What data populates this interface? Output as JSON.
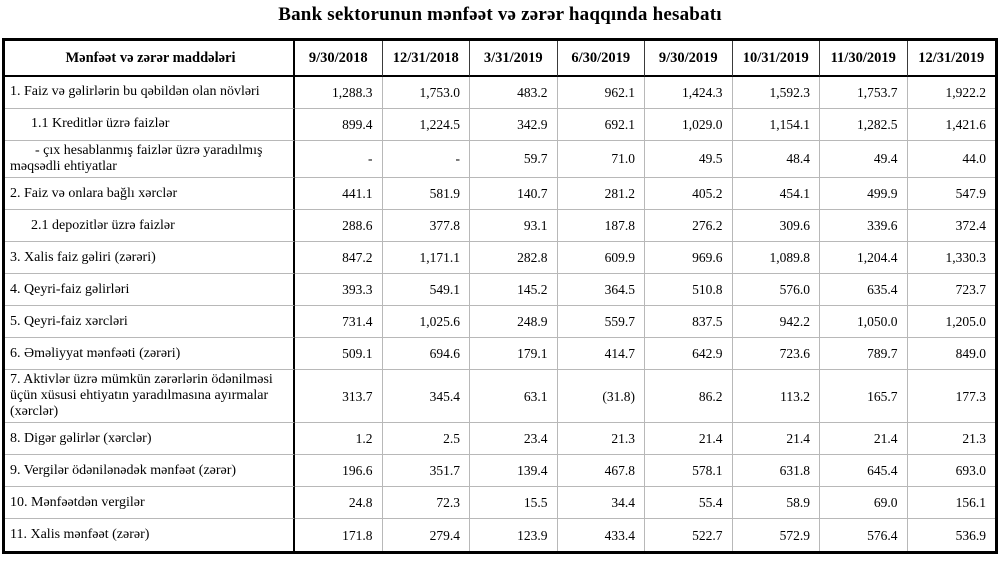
{
  "title": "Bank sektorunun mənfəət və zərər haqqında hesabatı",
  "table": {
    "header": {
      "label": "Mənfəət və zərər maddələri",
      "dates": [
        "9/30/2018",
        "12/31/2018",
        "3/31/2019",
        "6/30/2019",
        "9/30/2019",
        "10/31/2019",
        "11/30/2019",
        "12/31/2019"
      ]
    },
    "rows": [
      {
        "label": "1. Faiz və gəlirlərin bu qəbildən olan növləri",
        "level": 0,
        "values": [
          "1,288.3",
          "1,753.0",
          "483.2",
          "962.1",
          "1,424.3",
          "1,592.3",
          "1,753.7",
          "1,922.2"
        ]
      },
      {
        "label": "1.1 Kreditlər üzrə faizlər",
        "level": 1,
        "values": [
          "899.4",
          "1,224.5",
          "342.9",
          "692.1",
          "1,029.0",
          "1,154.1",
          "1,282.5",
          "1,421.6"
        ]
      },
      {
        "label": "- çıx hesablanmış faizlər üzrə yaradılmış məqsədli ehtiyatlar",
        "level": 2,
        "values": [
          "-",
          "-",
          "59.7",
          "71.0",
          "49.5",
          "48.4",
          "49.4",
          "44.0"
        ]
      },
      {
        "label": "2. Faiz və onlara bağlı xərclər",
        "level": 0,
        "values": [
          "441.1",
          "581.9",
          "140.7",
          "281.2",
          "405.2",
          "454.1",
          "499.9",
          "547.9"
        ]
      },
      {
        "label": "2.1 depozitlər üzrə faizlər",
        "level": 1,
        "values": [
          "288.6",
          "377.8",
          "93.1",
          "187.8",
          "276.2",
          "309.6",
          "339.6",
          "372.4"
        ]
      },
      {
        "label": "3. Xalis faiz gəliri (zərəri)",
        "level": 0,
        "values": [
          "847.2",
          "1,171.1",
          "282.8",
          "609.9",
          "969.6",
          "1,089.8",
          "1,204.4",
          "1,330.3"
        ]
      },
      {
        "label": "4. Qeyri-faiz gəlirləri",
        "level": 0,
        "values": [
          "393.3",
          "549.1",
          "145.2",
          "364.5",
          "510.8",
          "576.0",
          "635.4",
          "723.7"
        ]
      },
      {
        "label": "5. Qeyri-faiz xərcləri",
        "level": 0,
        "values": [
          "731.4",
          "1,025.6",
          "248.9",
          "559.7",
          "837.5",
          "942.2",
          "1,050.0",
          "1,205.0"
        ]
      },
      {
        "label": "6. Əməliyyat mənfəəti (zərəri)",
        "level": 0,
        "values": [
          "509.1",
          "694.6",
          "179.1",
          "414.7",
          "642.9",
          "723.6",
          "789.7",
          "849.0"
        ]
      },
      {
        "label": "7. Aktivlər üzrə mümkün zərərlərin ödənilməsi üçün xüsusi ehtiyatın yaradılmasına ayırmalar (xərclər)",
        "level": 0,
        "values": [
          "313.7",
          "345.4",
          "63.1",
          "(31.8)",
          "86.2",
          "113.2",
          "165.7",
          "177.3"
        ]
      },
      {
        "label": "8. Digər gəlirlər (xərclər)",
        "level": 0,
        "values": [
          "1.2",
          "2.5",
          "23.4",
          "21.3",
          "21.4",
          "21.4",
          "21.4",
          "21.3"
        ]
      },
      {
        "label": "9. Vergilər ödənilənədək mənfəət (zərər)",
        "level": 0,
        "values": [
          "196.6",
          "351.7",
          "139.4",
          "467.8",
          "578.1",
          "631.8",
          "645.4",
          "693.0"
        ]
      },
      {
        "label": "10. Mənfəətdən vergilər",
        "level": 0,
        "values": [
          "24.8",
          "72.3",
          "15.5",
          "34.4",
          "55.4",
          "58.9",
          "69.0",
          "156.1"
        ]
      },
      {
        "label": "11. Xalis mənfəət (zərər)",
        "level": 0,
        "values": [
          "171.8",
          "279.4",
          "123.9",
          "433.4",
          "522.7",
          "572.9",
          "576.4",
          "536.9"
        ]
      }
    ]
  },
  "colors": {
    "background": "#ffffff",
    "text": "#000000",
    "border_strong": "#000000",
    "border_light": "#b8b8b8"
  }
}
